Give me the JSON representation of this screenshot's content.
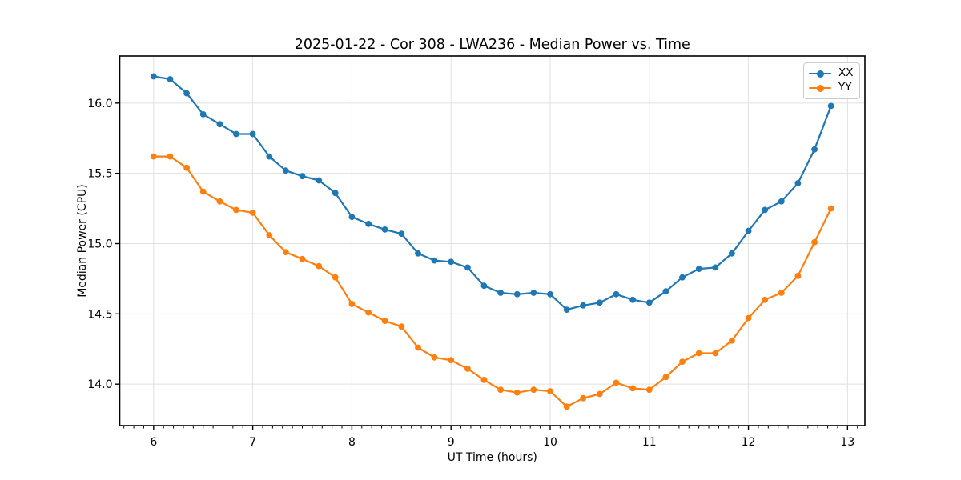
{
  "chart_data": {
    "type": "line",
    "title": "2025-01-22 - Cor 308 - LWA236 - Median Power vs. Time",
    "xlabel": "UT Time (hours)",
    "ylabel": "Median Power (CPU)",
    "xlim": [
      5.658,
      13.175
    ],
    "ylim": [
      13.705,
      16.335
    ],
    "x_ticks": [
      6,
      7,
      8,
      9,
      10,
      11,
      12,
      13
    ],
    "x_tick_labels": [
      "6",
      "7",
      "8",
      "9",
      "10",
      "11",
      "12",
      "13"
    ],
    "x_minor_step": 0.1,
    "y_ticks": [
      14.0,
      14.5,
      15.0,
      15.5,
      16.0
    ],
    "y_tick_labels": [
      "14.0",
      "14.5",
      "15.0",
      "15.5",
      "16.0"
    ],
    "grid": true,
    "grid_color": "#e0e0e0",
    "legend_position": "upper right",
    "x": [
      6.0,
      6.167,
      6.333,
      6.5,
      6.667,
      6.833,
      7.0,
      7.167,
      7.333,
      7.5,
      7.667,
      7.833,
      8.0,
      8.167,
      8.333,
      8.5,
      8.667,
      8.833,
      9.0,
      9.167,
      9.333,
      9.5,
      9.667,
      9.833,
      10.0,
      10.167,
      10.333,
      10.5,
      10.667,
      10.833,
      11.0,
      11.167,
      11.333,
      11.5,
      11.667,
      11.833,
      12.0,
      12.167,
      12.333,
      12.5,
      12.667,
      12.833
    ],
    "series": [
      {
        "name": "XX",
        "color": "#1f77b4",
        "values": [
          16.19,
          16.17,
          16.07,
          15.92,
          15.85,
          15.78,
          15.78,
          15.62,
          15.52,
          15.48,
          15.45,
          15.36,
          15.19,
          15.14,
          15.1,
          15.07,
          14.93,
          14.88,
          14.87,
          14.83,
          14.7,
          14.65,
          14.64,
          14.65,
          14.64,
          14.53,
          14.56,
          14.58,
          14.64,
          14.6,
          14.58,
          14.66,
          14.76,
          14.82,
          14.83,
          14.93,
          15.09,
          15.24,
          15.3,
          15.43,
          15.67,
          15.98
        ]
      },
      {
        "name": "YY",
        "color": "#ff7f0e",
        "values": [
          15.62,
          15.62,
          15.54,
          15.37,
          15.3,
          15.24,
          15.22,
          15.06,
          14.94,
          14.89,
          14.84,
          14.76,
          14.57,
          14.51,
          14.45,
          14.41,
          14.26,
          14.19,
          14.17,
          14.11,
          14.03,
          13.96,
          13.94,
          13.96,
          13.95,
          13.84,
          13.9,
          13.93,
          14.01,
          13.97,
          13.96,
          14.05,
          14.16,
          14.22,
          14.22,
          14.31,
          14.47,
          14.6,
          14.65,
          14.77,
          15.01,
          15.25
        ]
      }
    ]
  }
}
